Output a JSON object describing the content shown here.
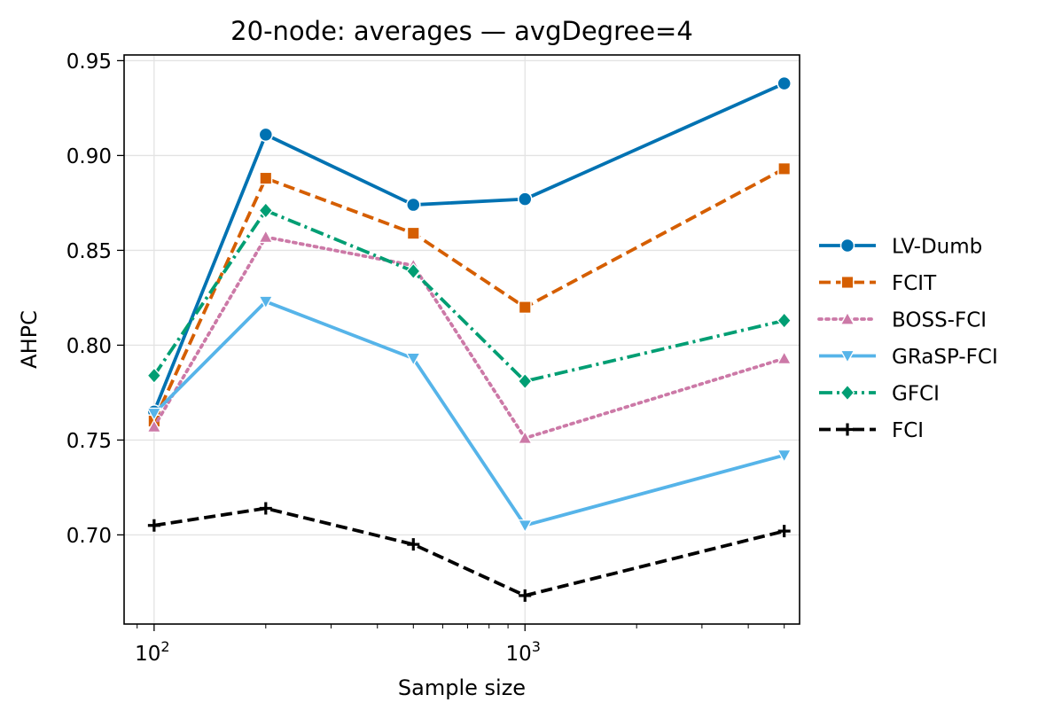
{
  "chart_data": {
    "type": "line",
    "title": "20-node: averages — avgDegree=4",
    "xlabel": "Sample size",
    "ylabel": "AHPC",
    "xscale": "log",
    "x": [
      100,
      200,
      500,
      1000,
      5000
    ],
    "xlim": [
      83,
      5500
    ],
    "ylim": [
      0.653,
      0.953
    ],
    "yticks": [
      "0.70",
      "0.75",
      "0.80",
      "0.85",
      "0.90",
      "0.95"
    ],
    "xticks": [
      {
        "base": "10",
        "exp": "2",
        "value": 100
      },
      {
        "base": "10",
        "exp": "3",
        "value": 1000
      }
    ],
    "grid": true,
    "legend_position": "outside-right",
    "series": [
      {
        "name": "LV-Dumb",
        "color": "#0072B2",
        "marker": "circle",
        "dash": "solid",
        "values": [
          0.765,
          0.911,
          0.874,
          0.877,
          0.938
        ]
      },
      {
        "name": "FCIT",
        "color": "#D55E00",
        "marker": "square",
        "dash": "dashed",
        "values": [
          0.76,
          0.888,
          0.859,
          0.82,
          0.893
        ]
      },
      {
        "name": "BOSS-FCI",
        "color": "#CC79A7",
        "marker": "triangle-up",
        "dash": "dotted",
        "values": [
          0.757,
          0.857,
          0.842,
          0.751,
          0.793
        ]
      },
      {
        "name": "GRaSP-FCI",
        "color": "#56B4E9",
        "marker": "triangle-down",
        "dash": "solid",
        "values": [
          0.764,
          0.823,
          0.793,
          0.705,
          0.742
        ]
      },
      {
        "name": "GFCI",
        "color": "#009E73",
        "marker": "diamond",
        "dash": "dashdot",
        "values": [
          0.784,
          0.871,
          0.839,
          0.781,
          0.813
        ]
      },
      {
        "name": "FCI",
        "color": "#000000",
        "marker": "plus",
        "dash": "dashed",
        "values": [
          0.705,
          0.714,
          0.695,
          0.668,
          0.702
        ]
      }
    ]
  }
}
